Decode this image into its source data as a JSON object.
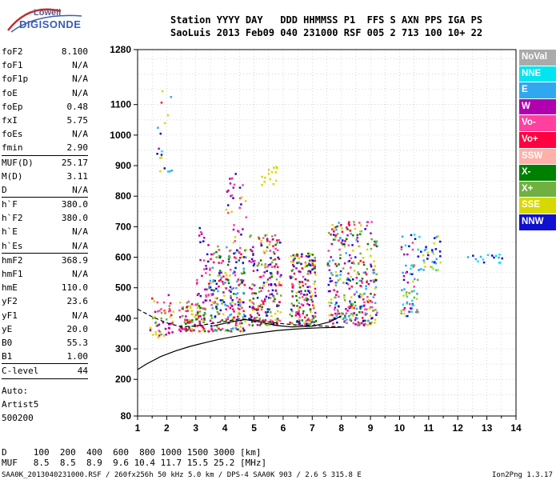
{
  "logo": {
    "top": "Lowell",
    "bottom": "DIGISONDE"
  },
  "header": {
    "line1": "Station YYYY DAY   DDD HHMMSS P1  FFS S AXN PPS IGA PS",
    "line2": "SaoLuis 2013 Feb09 040 231000 RSF 005 2 713 100 10+ 22"
  },
  "params": [
    {
      "name": "foF2",
      "value": "8.100"
    },
    {
      "name": "foF1",
      "value": "N/A"
    },
    {
      "name": "foF1p",
      "value": "N/A"
    },
    {
      "name": "foE",
      "value": "N/A"
    },
    {
      "name": "foEp",
      "value": "0.48"
    },
    {
      "name": "fxI",
      "value": "5.75"
    },
    {
      "name": "foEs",
      "value": "N/A"
    },
    {
      "name": "fmin",
      "value": "2.90",
      "sep": true
    },
    {
      "name": "MUF(D)",
      "value": "25.17"
    },
    {
      "name": "M(D)",
      "value": "3.11"
    },
    {
      "name": "D",
      "value": "N/A",
      "sep": true
    },
    {
      "name": "h`F",
      "value": "380.0"
    },
    {
      "name": "h`F2",
      "value": "380.0"
    },
    {
      "name": "h`E",
      "value": "N/A"
    },
    {
      "name": "h`Es",
      "value": "N/A",
      "sep": true
    },
    {
      "name": "hmF2",
      "value": "368.9"
    },
    {
      "name": "hmF1",
      "value": "N/A"
    },
    {
      "name": "hmE",
      "value": "110.0"
    },
    {
      "name": "yF2",
      "value": "23.6"
    },
    {
      "name": "yF1",
      "value": "N/A"
    },
    {
      "name": "yE",
      "value": "20.0"
    },
    {
      "name": "B0",
      "value": "55.3"
    },
    {
      "name": "B1",
      "value": "1.00",
      "sep": true
    },
    {
      "name": "C-level",
      "value": "44",
      "sep": true
    }
  ],
  "notes": [
    "Auto:",
    "Artist5",
    "500200"
  ],
  "legend": [
    {
      "label": "NoVal",
      "color": "#aaaaaa"
    },
    {
      "label": "NNE",
      "color": "#00e5f0"
    },
    {
      "label": "E",
      "color": "#30a8f0"
    },
    {
      "label": "W",
      "color": "#b000b0"
    },
    {
      "label": "Vo-",
      "color": "#ff40a0"
    },
    {
      "label": "Vo+",
      "color": "#ff0040"
    },
    {
      "label": "SSW",
      "color": "#ffb0a8"
    },
    {
      "label": "X-",
      "color": "#008000"
    },
    {
      "label": "X+",
      "color": "#70b040"
    },
    {
      "label": "SSE",
      "color": "#d8d800"
    },
    {
      "label": "NNW",
      "color": "#1010d0"
    }
  ],
  "footer": {
    "line1": "D     100  200  400  600  800 1000 1500 3000 [km]",
    "line2": "MUF   8.5  8.5  8.9  9.6 10.4 11.7 15.5 25.2 [MHz]",
    "line3": "SAA0K_2013040231000.RSF / 260fx256h 50 kHz 5.0 km / DPS-4 SAA0K 903 / 2.6 S 315.8 E",
    "version": "Ion2Png 1.3.17"
  },
  "chart_data": {
    "type": "scatter",
    "xlim": [
      1,
      14
    ],
    "ylim": [
      80,
      1280
    ],
    "x_ticks": [
      "1",
      "2",
      "3",
      "4",
      "5",
      "6",
      "7",
      "8",
      "9",
      "10",
      "11",
      "12",
      "13",
      "14"
    ],
    "y_ticks": [
      80,
      200,
      300,
      400,
      500,
      600,
      700,
      800,
      900,
      1000,
      1100,
      1280
    ],
    "grid": true,
    "clusters": [
      {
        "x": [
          1.4,
          2.2
        ],
        "y": [
          340,
          480
        ],
        "colors": [
          "#ff0040",
          "#ff40a0",
          "#b000b0",
          "#d8d800",
          "#70b040"
        ],
        "n": 55
      },
      {
        "x": [
          2.4,
          3.3
        ],
        "y": [
          360,
          460
        ],
        "colors": [
          "#ff0040",
          "#ff40a0",
          "#008000",
          "#d8d800",
          "#70b040",
          "#b000b0"
        ],
        "n": 110
      },
      {
        "x": [
          3.0,
          3.4
        ],
        "y": [
          460,
          720
        ],
        "colors": [
          "#b000b0",
          "#ff40a0",
          "#1010d0"
        ],
        "n": 30
      },
      {
        "x": [
          3.4,
          4.7
        ],
        "y": [
          360,
          640
        ],
        "colors": [
          "#ff0040",
          "#ff40a0",
          "#b000b0",
          "#1010d0",
          "#008000",
          "#d8d800",
          "#70b040",
          "#30a8f0"
        ],
        "n": 240
      },
      {
        "x": [
          4.0,
          4.7
        ],
        "y": [
          600,
          880
        ],
        "colors": [
          "#b000b0",
          "#1010d0",
          "#ff40a0",
          "#d8d800"
        ],
        "n": 40
      },
      {
        "x": [
          4.8,
          5.9
        ],
        "y": [
          380,
          680
        ],
        "colors": [
          "#ff0040",
          "#ff40a0",
          "#b000b0",
          "#1010d0",
          "#d8d800",
          "#70b040",
          "#008000"
        ],
        "n": 220
      },
      {
        "x": [
          5.2,
          5.9
        ],
        "y": [
          840,
          900
        ],
        "colors": [
          "#d8d800"
        ],
        "n": 14
      },
      {
        "x": [
          6.2,
          7.1
        ],
        "y": [
          380,
          620
        ],
        "colors": [
          "#d8d800",
          "#ff40a0",
          "#ff0040",
          "#008000",
          "#70b040",
          "#b000b0",
          "#1010d0"
        ],
        "n": 200
      },
      {
        "x": [
          7.5,
          9.2
        ],
        "y": [
          380,
          720
        ],
        "colors": [
          "#ff0040",
          "#ff40a0",
          "#b000b0",
          "#1010d0",
          "#d8d800",
          "#008000",
          "#70b040",
          "#30a8f0"
        ],
        "n": 330
      },
      {
        "x": [
          10.0,
          10.6
        ],
        "y": [
          410,
          680
        ],
        "colors": [
          "#30a8f0",
          "#00e5f0",
          "#ff40a0",
          "#b000b0",
          "#d8d800",
          "#70b040",
          "#1010d0"
        ],
        "n": 65
      },
      {
        "x": [
          10.6,
          11.4
        ],
        "y": [
          560,
          680
        ],
        "colors": [
          "#30a8f0",
          "#00e5f0",
          "#d8d800",
          "#1010d0"
        ],
        "n": 40
      },
      {
        "x": [
          12.3,
          13.5
        ],
        "y": [
          585,
          615
        ],
        "colors": [
          "#00e5f0",
          "#30a8f0",
          "#1010d0"
        ],
        "n": 16
      },
      {
        "x": [
          1.6,
          2.2
        ],
        "y": [
          880,
          1280
        ],
        "colors": [
          "#1010d0",
          "#30a8f0",
          "#00e5f0",
          "#b000b0",
          "#ff0040",
          "#d8d800"
        ],
        "n": 18
      }
    ],
    "traces": [
      {
        "name": "",
        "x": [
          1.0,
          1.5,
          2.0,
          2.5,
          3.0,
          3.5,
          4.0,
          4.5,
          5.0,
          5.5,
          6.0,
          6.5,
          7.0,
          7.5,
          8.0
        ],
        "y": [
          430,
          405,
          385,
          372,
          375,
          382,
          390,
          398,
          395,
          388,
          382,
          378,
          376,
          374,
          372
        ],
        "dash": true
      },
      {
        "name": "",
        "x": [
          1.0,
          1.3,
          1.8,
          2.3,
          2.8,
          3.3,
          3.8,
          4.3,
          4.8,
          5.3,
          5.8,
          6.3,
          6.8,
          7.3,
          7.8,
          8.1
        ],
        "y": [
          232,
          250,
          275,
          293,
          308,
          320,
          331,
          340,
          348,
          354,
          360,
          364,
          367,
          369,
          370,
          371
        ],
        "dash": false
      },
      {
        "name": "",
        "x": [
          3.6,
          4.2,
          4.7,
          5.3,
          5.8,
          6.3,
          7.0,
          7.6,
          8.0
        ],
        "y": [
          375,
          388,
          396,
          386,
          376,
          372,
          374,
          388,
          408
        ],
        "dash": false
      }
    ]
  }
}
